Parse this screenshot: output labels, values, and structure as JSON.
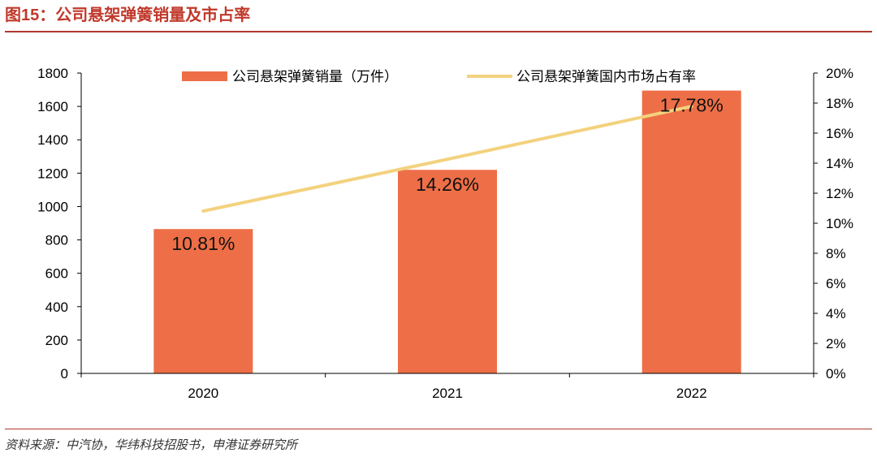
{
  "header": {
    "title": "图15：公司悬架弹簧销量及市占率"
  },
  "footer": {
    "source": "资料来源：中汽协，华纬科技招股书，申港证券研究所"
  },
  "colors": {
    "bar": "#ee6f47",
    "line": "#f3d27e",
    "accent": "#b03a2e",
    "axis": "#000000"
  },
  "chart_data": {
    "type": "bar",
    "categories": [
      "2020",
      "2021",
      "2022"
    ],
    "series": [
      {
        "name": "公司悬架弹簧销量（万件）",
        "type": "bar",
        "axis": "left",
        "values": [
          865,
          1220,
          1695
        ]
      },
      {
        "name": "公司悬架弹簧国内市场占有率",
        "type": "line",
        "axis": "right",
        "values": [
          10.81,
          14.26,
          17.78
        ]
      }
    ],
    "data_labels": [
      "10.81%",
      "14.26%",
      "17.78%"
    ],
    "y_left": {
      "min": 0,
      "max": 1800,
      "ticks": [
        "0",
        "200",
        "400",
        "600",
        "800",
        "1000",
        "1200",
        "1400",
        "1600",
        "1800"
      ]
    },
    "y_right": {
      "min": 0,
      "max": 20,
      "ticks": [
        "0%",
        "2%",
        "4%",
        "6%",
        "8%",
        "10%",
        "12%",
        "14%",
        "16%",
        "18%",
        "20%"
      ]
    },
    "legend_position": "top",
    "grid": false
  }
}
